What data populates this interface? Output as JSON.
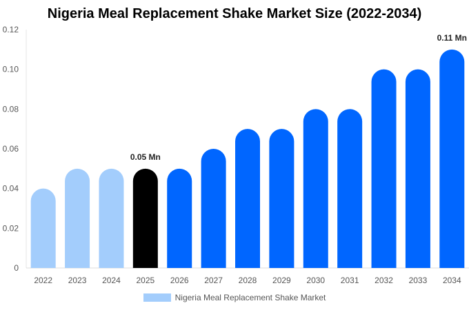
{
  "chart_data": {
    "type": "bar",
    "title": "Nigeria Meal Replacement Shake Market Size (2022-2034)",
    "categories": [
      "2022",
      "2023",
      "2024",
      "2025",
      "2026",
      "2027",
      "2028",
      "2029",
      "2030",
      "2031",
      "2032",
      "2033",
      "2034"
    ],
    "series": [
      {
        "name": "Nigeria Meal Replacement Shake Market",
        "values": [
          0.04,
          0.05,
          0.05,
          0.05,
          0.05,
          0.06,
          0.07,
          0.07,
          0.08,
          0.08,
          0.1,
          0.1,
          0.11
        ]
      }
    ],
    "ylim": [
      0,
      0.12
    ],
    "yticks": [
      "0",
      "0.02",
      "0.04",
      "0.06",
      "0.08",
      "0.10",
      "0.12"
    ],
    "data_labels": [
      {
        "category": "2025",
        "text": "0.05 Mn"
      },
      {
        "category": "2034",
        "text": "0.11 Mn"
      }
    ],
    "colors": {
      "historical": "#a3cdfc",
      "base_year": "#000000",
      "forecast": "#0066ff"
    },
    "historical_years": [
      "2022",
      "2023",
      "2024"
    ],
    "base_year": "2025",
    "grid": false,
    "legend_placement": "bottom"
  }
}
